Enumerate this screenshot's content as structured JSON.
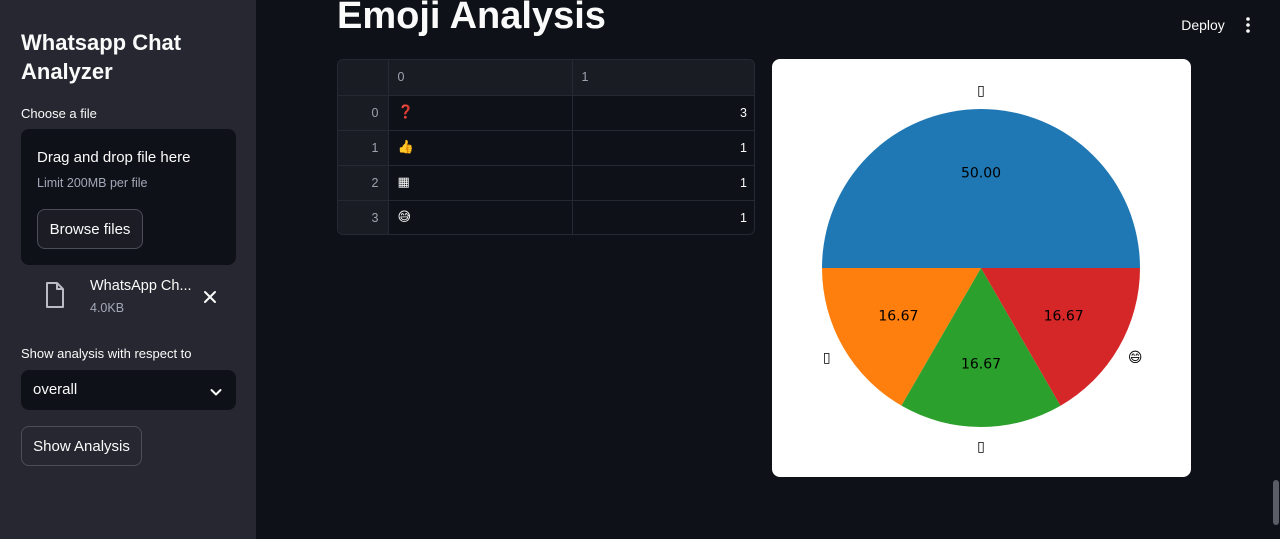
{
  "sidebar": {
    "app_title": "Whatsapp Chat Analyzer",
    "choose_file_label": "Choose a file",
    "uploader": {
      "drop_text": "Drag and drop file here",
      "limit_text": "Limit 200MB per file",
      "browse_label": "Browse files"
    },
    "uploaded_file": {
      "name": "WhatsApp Ch...",
      "size": "4.0KB"
    },
    "select_label": "Show analysis with respect to",
    "select_value": "overall",
    "show_analysis_label": "Show Analysis"
  },
  "header": {
    "deploy_label": "Deploy"
  },
  "main": {
    "title": "Emoji Analysis",
    "table": {
      "columns": [
        "",
        "0",
        "1"
      ],
      "rows": [
        {
          "index": "0",
          "emoji": "❓",
          "count": "3"
        },
        {
          "index": "1",
          "emoji": "👍",
          "count": "1"
        },
        {
          "index": "2",
          "emoji": "▦",
          "count": "1"
        },
        {
          "index": "3",
          "emoji": "😅",
          "count": "1"
        }
      ]
    }
  },
  "chart_data": {
    "type": "pie",
    "categories": [
      "▯",
      "▯",
      "▯",
      "😄"
    ],
    "values": [
      50.0,
      16.67,
      16.67,
      16.67
    ],
    "value_labels": [
      "50.00",
      "16.67",
      "16.67",
      "16.67"
    ],
    "colors": [
      "#1f77b4",
      "#ff7f0e",
      "#2ca02c",
      "#d62728"
    ],
    "start_angle_deg": 0,
    "direction": "counterclockwise"
  }
}
